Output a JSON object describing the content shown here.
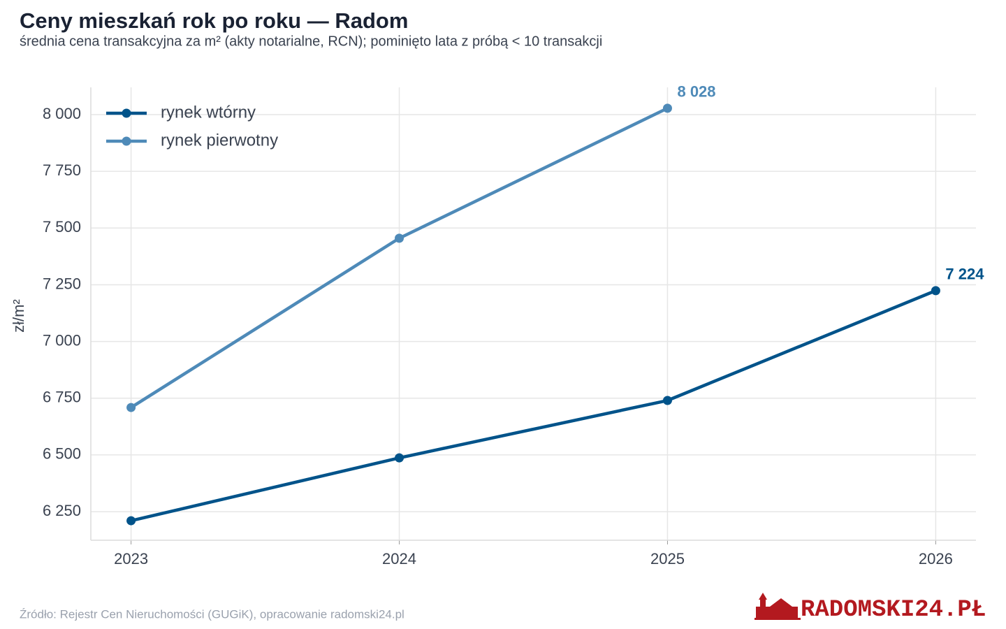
{
  "chart_data": {
    "type": "line",
    "title": "Ceny mieszkań rok po roku — Radom",
    "subtitle": "średnia cena transakcyjna za m² (akty notarialne, RCN); pominięto lata z próbą < 10 transakcji",
    "y_label": "zł/m²",
    "x": [
      2023,
      2024,
      2025,
      2026
    ],
    "series": [
      {
        "name": "rynek wtórny",
        "color": "#00538a",
        "values": [
          6210,
          6487,
          6740,
          7224
        ],
        "value_labels": [
          null,
          null,
          null,
          "7 224"
        ]
      },
      {
        "name": "rynek pierwotny",
        "color": "#4e8ab8",
        "values": [
          6709,
          7455,
          8028,
          null
        ],
        "value_labels": [
          null,
          null,
          "8 028",
          null
        ]
      }
    ],
    "xlim": [
      2022.85,
      2026.15
    ],
    "xticks": [
      2023,
      2024,
      2025,
      2026
    ],
    "ylim": [
      6124,
      8120
    ],
    "yticks": [
      {
        "value": 6250,
        "label": "6 250"
      },
      {
        "value": 6500,
        "label": "6 500"
      },
      {
        "value": 6750,
        "label": "6 750"
      },
      {
        "value": 7000,
        "label": "7 000"
      },
      {
        "value": 7250,
        "label": "7 250"
      },
      {
        "value": 7500,
        "label": "7 500"
      },
      {
        "value": 7750,
        "label": "7 750"
      },
      {
        "value": 8000,
        "label": "8 000"
      }
    ],
    "grid": true,
    "legend": "upper-left",
    "source": "Źródło: Rejestr Cen Nieruchomości (GUGiK), opracowanie radomski24.pl",
    "logo": "RADOMSKI24.PŁ"
  }
}
